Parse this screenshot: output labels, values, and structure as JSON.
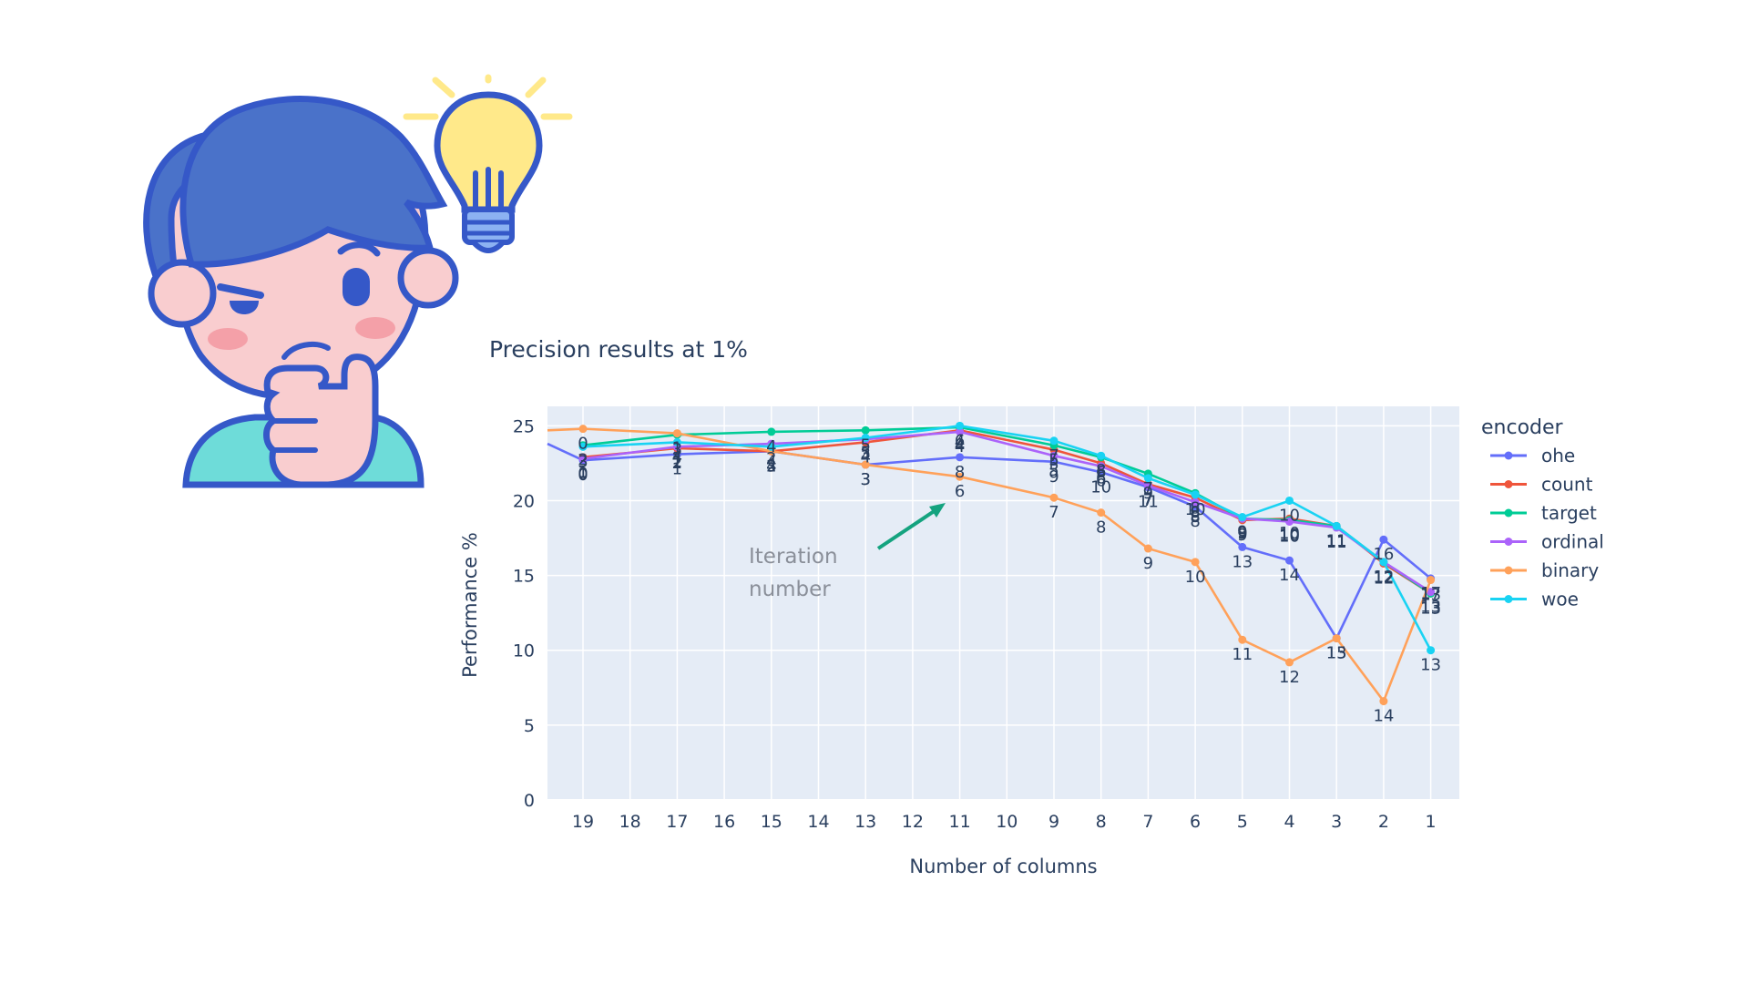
{
  "chart_data": {
    "type": "line",
    "title": "Precision results at 1%",
    "xlabel": "Number of columns",
    "ylabel": "Performance %",
    "x_categories": [
      "19",
      "18",
      "17",
      "16",
      "15",
      "14",
      "13",
      "12",
      "11",
      "10",
      "9",
      "8",
      "7",
      "6",
      "5",
      "4",
      "3",
      "2",
      "1"
    ],
    "yticks": [
      0,
      5,
      10,
      15,
      20,
      25
    ],
    "ylim": [
      0,
      26.3
    ],
    "legend_title": "encoder",
    "legend_position": "right",
    "grid": true,
    "annotation": {
      "text_line1": "Iteration",
      "text_line2": "number",
      "arrow_color": "#14a37f"
    },
    "series": [
      {
        "name": "ohe",
        "color": "#636efa",
        "x": [
          "19",
          "17",
          "15",
          "13",
          "11",
          "9",
          "8",
          "7",
          "6",
          "5",
          "4",
          "3",
          "2",
          "1"
        ],
        "y": [
          22.7,
          23.1,
          23.3,
          22.4,
          22.9,
          22.6,
          21.9,
          20.9,
          19.6,
          16.9,
          16.0,
          10.8,
          17.4,
          14.8
        ],
        "labels": [
          "0",
          "1",
          "4",
          "3",
          "8",
          "9",
          "10",
          "11",
          "8",
          "13",
          "14",
          "15",
          "16",
          "17"
        ]
      },
      {
        "name": "count",
        "color": "#ef553b",
        "x": [
          "19",
          "17",
          "15",
          "13",
          "11",
          "9",
          "8",
          "7",
          "6",
          "5",
          "4",
          "3",
          "2",
          "1"
        ],
        "y": [
          22.9,
          23.5,
          23.3,
          23.9,
          24.7,
          23.4,
          22.5,
          21.1,
          20.2,
          18.7,
          18.8,
          18.3,
          15.8,
          13.8
        ],
        "labels": [
          "1",
          "2",
          "3",
          "4",
          "4",
          "5",
          "6",
          "7",
          "8",
          "9",
          "10",
          "11",
          "12",
          "13"
        ]
      },
      {
        "name": "target",
        "color": "#00cc96",
        "x": [
          "19",
          "17",
          "15",
          "13",
          "11",
          "9",
          "8",
          "7",
          "6",
          "5",
          "4",
          "3",
          "2",
          "1"
        ],
        "y": [
          23.7,
          24.4,
          24.6,
          24.7,
          24.9,
          23.7,
          22.9,
          21.8,
          20.5,
          18.8,
          18.7,
          18.3,
          15.9,
          13.8
        ],
        "labels": [
          "2",
          "3",
          "4",
          "5",
          "4",
          "5",
          "6",
          "7",
          "8",
          "9",
          "10",
          "11",
          "12",
          "13"
        ]
      },
      {
        "name": "ordinal",
        "color": "#ab63fa",
        "x": [
          "19",
          "17",
          "15",
          "13",
          "11",
          "9",
          "8",
          "7",
          "6",
          "5",
          "4",
          "3",
          "2",
          "1"
        ],
        "y": [
          22.8,
          23.6,
          23.8,
          24.1,
          24.6,
          23.0,
          22.3,
          21.0,
          19.9,
          18.8,
          18.6,
          18.2,
          15.9,
          13.9
        ],
        "labels": [
          "0",
          "1",
          "2",
          "3",
          "4",
          "5",
          "6",
          "7",
          "8",
          "9",
          "10",
          "11",
          "12",
          "13"
        ]
      },
      {
        "name": "binary",
        "color": "#ffa15a",
        "x": [
          "19",
          "17",
          "15",
          "13",
          "11",
          "9",
          "8",
          "7",
          "6",
          "5",
          "4",
          "3",
          "2",
          "1"
        ],
        "y": [
          24.8,
          24.5,
          23.3,
          22.4,
          21.6,
          20.2,
          19.2,
          16.8,
          15.9,
          10.7,
          9.2,
          10.8,
          6.6,
          14.7
        ],
        "labels": [
          "0",
          "1",
          "2",
          "3",
          "6",
          "7",
          "8",
          "9",
          "10",
          "11",
          "12",
          "13",
          "14",
          "13"
        ]
      },
      {
        "name": "woe",
        "color": "#19d3f3",
        "x": [
          "19",
          "17",
          "15",
          "13",
          "11",
          "9",
          "8",
          "7",
          "6",
          "5",
          "4",
          "3",
          "2",
          "1"
        ],
        "y": [
          23.6,
          23.9,
          23.6,
          24.2,
          25.0,
          24.0,
          23.0,
          21.5,
          20.4,
          18.9,
          20.0,
          18.3,
          15.9,
          10.0
        ],
        "labels": [
          "3",
          "4",
          "4",
          "5",
          "6",
          "7",
          "8",
          "9",
          "10",
          "9",
          "10",
          "11",
          "12",
          "13"
        ]
      }
    ]
  },
  "illustration": {
    "icon_name": "thinking-person-with-lightbulb-icon",
    "colors": {
      "hair": "#4a72c9",
      "outline": "#3558c8",
      "skin": "#f9cdcf",
      "blush": "#f4a0a8",
      "shirt": "#6edcd9",
      "bulb": "#ffe98a",
      "bulb_base": "#8cb2f2"
    }
  }
}
